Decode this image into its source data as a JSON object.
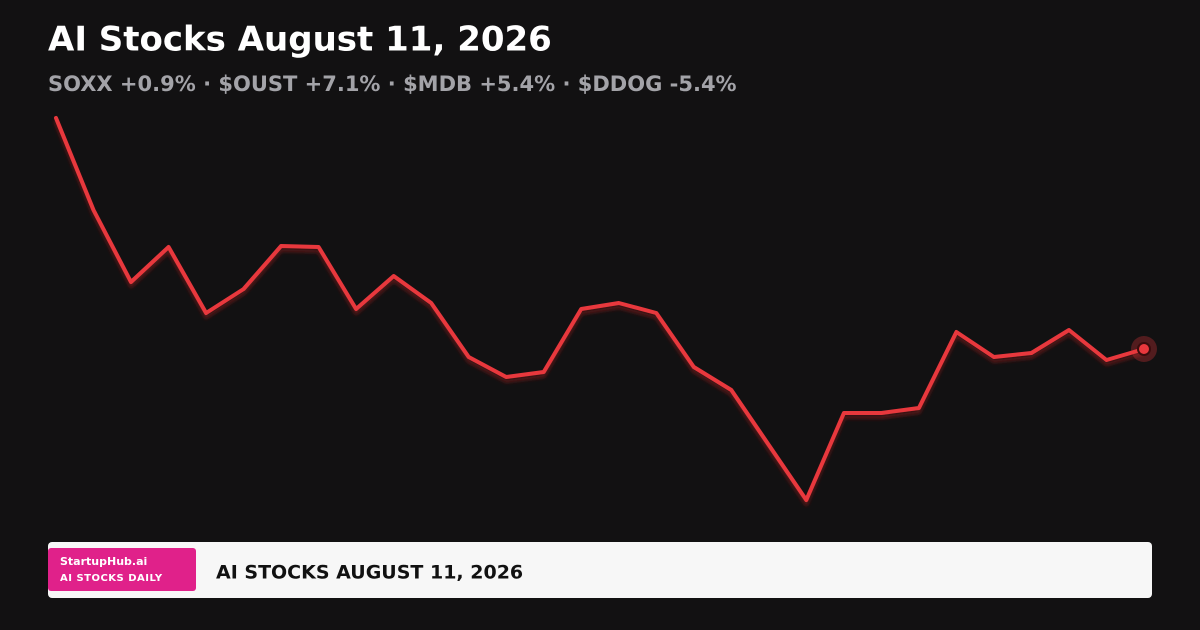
{
  "chart_data": {
    "type": "line",
    "title": "AI Stocks August 11, 2026",
    "subtitle": "SOXX +0.9% · $OUST +7.1% · $MDB +5.4% · $DDOG -5.4%",
    "color": "#e8383d",
    "values": [
      402,
      310,
      238,
      273,
      207,
      231,
      274,
      273,
      211,
      244,
      217,
      163,
      143,
      148,
      211,
      217,
      207,
      153,
      130,
      75,
      20,
      107,
      107,
      112,
      188,
      163,
      167,
      190,
      160,
      171
    ]
  },
  "footer": {
    "brand": "StartupHub.ai",
    "tagline": "AI STOCKS DAILY",
    "headline": "AI STOCKS AUGUST 11, 2026"
  }
}
